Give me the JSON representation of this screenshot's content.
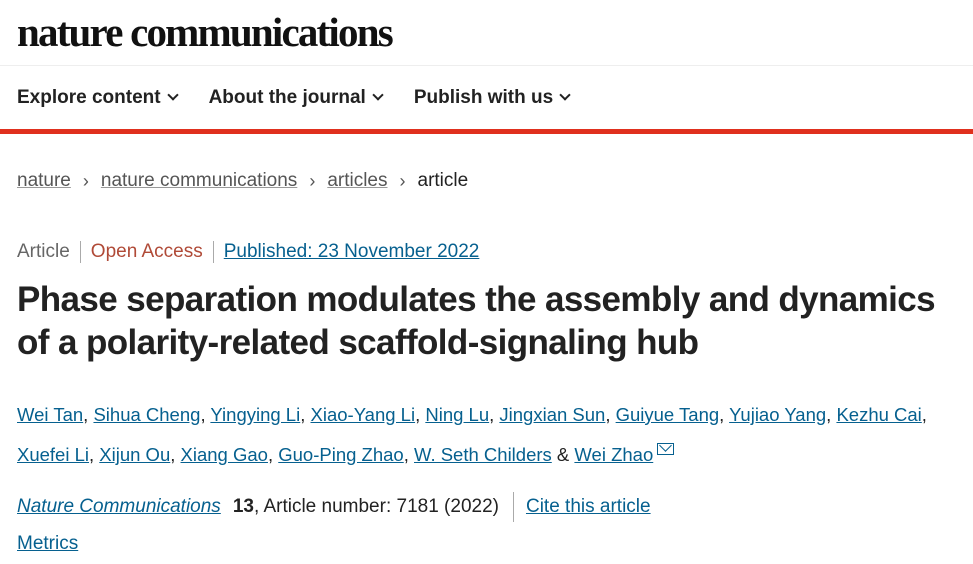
{
  "brand": {
    "logo_text": "nature communications"
  },
  "nav": {
    "items": [
      {
        "label": "Explore content"
      },
      {
        "label": "About the journal"
      },
      {
        "label": "Publish with us"
      }
    ]
  },
  "breadcrumb": {
    "items": [
      "nature",
      "nature communications",
      "articles"
    ],
    "current": "article"
  },
  "article": {
    "type": "Article",
    "access": "Open Access",
    "published": "Published: 23 November 2022",
    "title": "Phase separation modulates the assembly and dynamics of a polarity-related scaffold-signaling hub",
    "authors": [
      "Wei Tan",
      "Sihua Cheng",
      "Yingying Li",
      "Xiao-Yang Li",
      "Ning Lu",
      "Jingxian Sun",
      "Guiyue Tang",
      "Yujiao Yang",
      "Kezhu Cai",
      "Xuefei Li",
      "Xijun Ou",
      "Xiang Gao",
      "Guo-Ping Zhao",
      "W. Seth Childers"
    ],
    "last_author": "Wei Zhao",
    "ampersand": "&",
    "journal": "Nature Communications",
    "volume": "13",
    "article_number": ", Article number: 7181 (2022)",
    "cite_label": "Cite this article",
    "metrics_label": "Metrics"
  },
  "colors": {
    "accent_red": "#e0301e",
    "link": "#06608f",
    "open_access": "#b04a37"
  }
}
